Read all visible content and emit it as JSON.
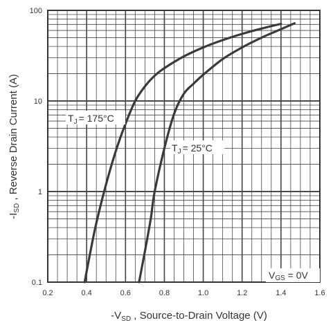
{
  "chart_data": {
    "type": "line",
    "xscale": "linear",
    "yscale": "log",
    "xlim": [
      0.2,
      1.6
    ],
    "ylim": [
      0.1,
      100
    ],
    "x_ticks": [
      "0.2",
      "0.4",
      "0.6",
      "0.8",
      "1.0",
      "1.2",
      "1.4",
      "1.6"
    ],
    "y_ticks": [
      "0.1",
      "1",
      "10",
      "100"
    ],
    "xlabel": {
      "prefix": "-V",
      "sub": "SD",
      "text": " , Source-to-Drain Voltage (V)"
    },
    "ylabel": {
      "prefix": "-I",
      "sub": "SD",
      "text": " , Reverse Drain Current (A)"
    },
    "grid": true,
    "series": [
      {
        "name": "T_J = 175°C",
        "label": {
          "prefix": "T",
          "sub": "J",
          "text": "= 175°C"
        },
        "color": "#3a3a3a",
        "x": [
          0.39,
          0.42,
          0.45,
          0.5,
          0.55,
          0.6,
          0.65,
          0.7,
          0.75,
          0.8,
          0.9,
          1.0,
          1.1,
          1.2,
          1.3,
          1.4
        ],
        "y": [
          0.1,
          0.22,
          0.45,
          1.2,
          2.8,
          5.6,
          10,
          14.5,
          19,
          23,
          31,
          39,
          47,
          55,
          63,
          71
        ]
      },
      {
        "name": "T_J = 25°C",
        "label": {
          "prefix": "T",
          "sub": "J",
          "text": "= 25°C"
        },
        "color": "#3a3a3a",
        "x": [
          0.67,
          0.7,
          0.73,
          0.75,
          0.8,
          0.85,
          0.9,
          0.95,
          1.0,
          1.1,
          1.2,
          1.3,
          1.4,
          1.47
        ],
        "y": [
          0.1,
          0.22,
          0.5,
          1.0,
          3.0,
          7.2,
          12,
          15.5,
          19.5,
          29,
          39,
          50,
          62,
          72
        ]
      }
    ],
    "annotation": {
      "prefix": "V",
      "sub": "GS",
      "text": " = 0V"
    }
  }
}
